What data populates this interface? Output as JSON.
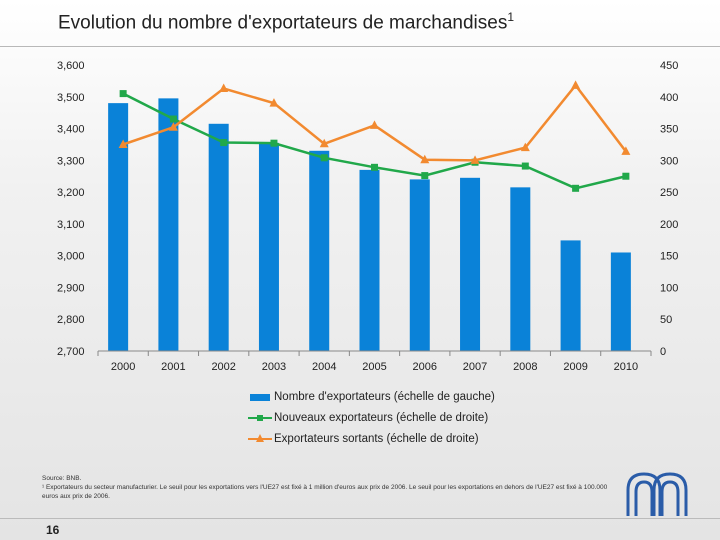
{
  "title": "Evolution du nombre d'exportateurs de marchandises",
  "title_footnote_mark": "1",
  "chart_data": {
    "type": "bar+line",
    "title": "Evolution du nombre d'exportateurs de marchandises",
    "categories": [
      "2000",
      "2001",
      "2002",
      "2003",
      "2004",
      "2005",
      "2006",
      "2007",
      "2008",
      "2009",
      "2010"
    ],
    "left_axis": {
      "ylim": [
        2700,
        3600
      ],
      "ticks": [
        2700,
        2800,
        2900,
        3000,
        3100,
        3200,
        3300,
        3400,
        3500,
        3600
      ],
      "tick_labels": [
        "2,700",
        "2,800",
        "2,900",
        "3,000",
        "3,100",
        "3,200",
        "3,300",
        "3,400",
        "3,500",
        "3,600"
      ]
    },
    "right_axis": {
      "ylim": [
        0,
        450
      ],
      "ticks": [
        0,
        50,
        100,
        150,
        200,
        250,
        300,
        350,
        400,
        450
      ],
      "tick_labels": [
        "0",
        "50",
        "100",
        "150",
        "200",
        "250",
        "300",
        "350",
        "400",
        "450"
      ]
    },
    "series": [
      {
        "name": "Nombre d'exportateurs (échelle de gauche)",
        "type": "bar",
        "axis": "left",
        "color": "#0a82d8",
        "values": [
          3480,
          3495,
          3415,
          3355,
          3330,
          3270,
          3240,
          3245,
          3215,
          3048,
          3010
        ]
      },
      {
        "name": "Nouveaux exportateurs (échelle de droite)",
        "type": "line",
        "marker": "square",
        "axis": "right",
        "color": "#21a84a",
        "values": [
          405,
          365,
          328,
          327,
          304,
          289,
          276,
          297,
          291,
          256,
          275
        ]
      },
      {
        "name": "Exportateurs sortants (échelle de droite)",
        "type": "line",
        "marker": "triangle",
        "axis": "right",
        "color": "#f28a30",
        "values": [
          325,
          352,
          413,
          390,
          326,
          355,
          301,
          300,
          320,
          418,
          314
        ]
      }
    ],
    "grid": false,
    "legend_position": "bottom"
  },
  "notes": {
    "source": "Source: BNB.",
    "footnote": "¹ Exportateurs du secteur manufacturier. Le seuil pour les exportations vers l'UE27 est fixé à 1 million d'euros aux prix de 2006. Le seuil pour les exportations en dehors de l'UE27 est fixé à 100.000 euros aux prix de 2006."
  },
  "page_number": "16",
  "colors": {
    "bar": "#0a82d8",
    "new": "#21a84a",
    "exit": "#f28a30",
    "logo": "#2a5ca8"
  }
}
